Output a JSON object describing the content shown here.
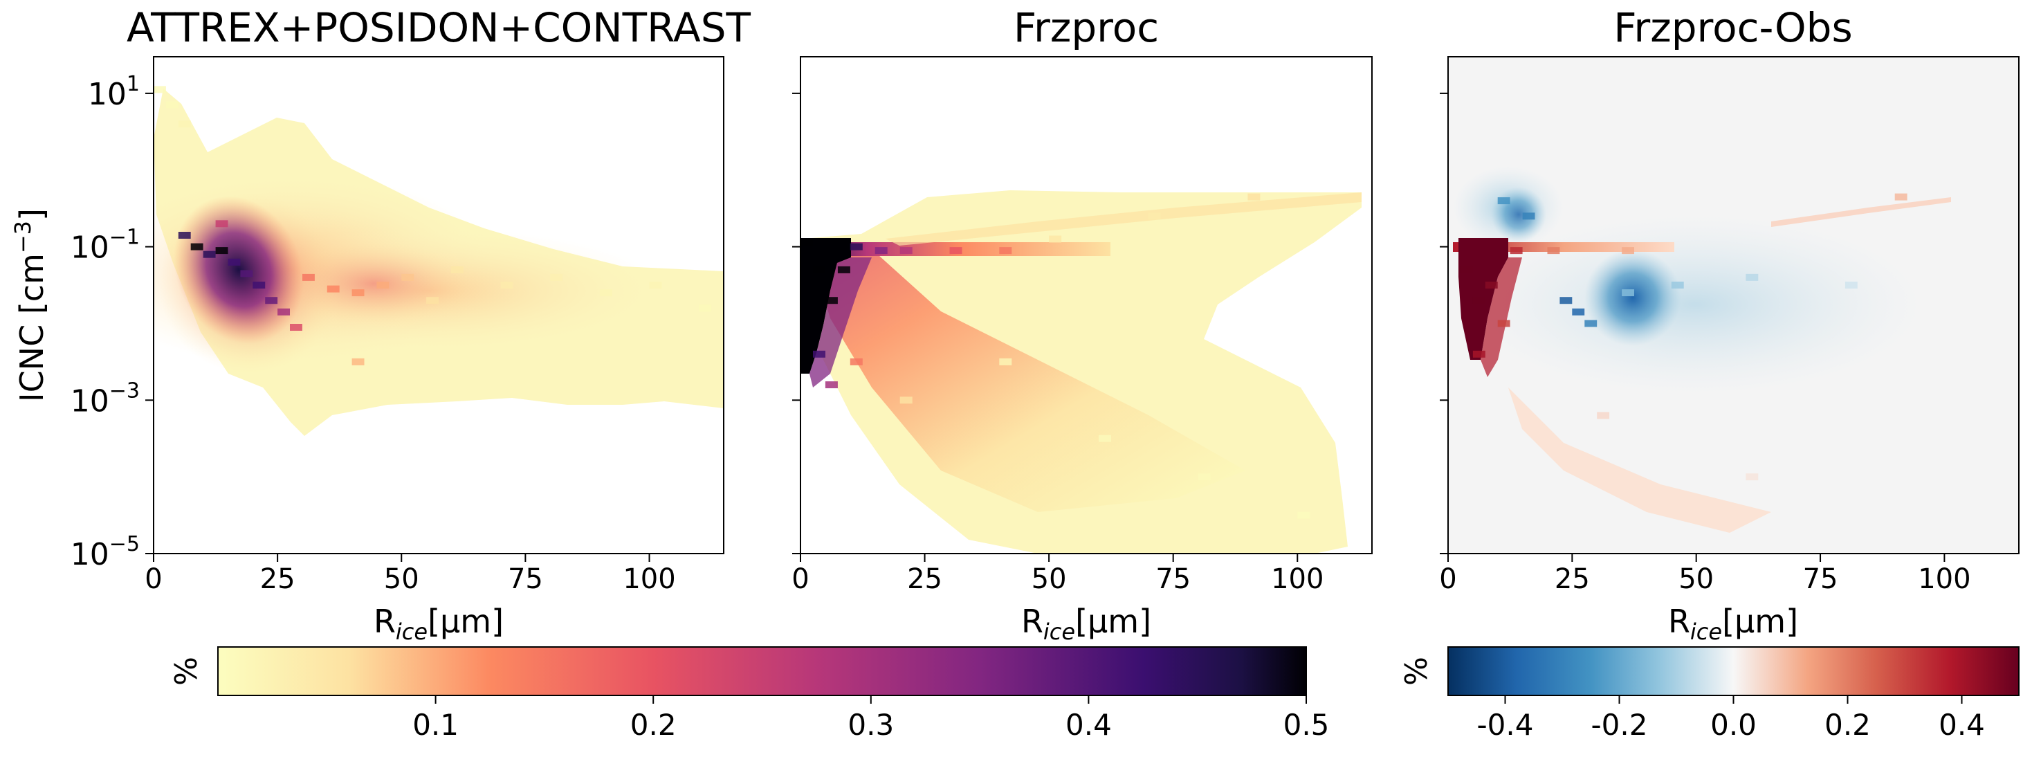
{
  "chart_data": [
    {
      "type": "heatmap",
      "title": "ATTREX+POSIDON+CONTRAST",
      "xlabel": "R",
      "xlabel_sub": "ice",
      "xlabel_unit": "[µm]",
      "ylabel": "ICNC [cm",
      "ylabel_sup": "−3",
      "ylabel_end": "]",
      "x_scale": "linear",
      "xlim": [
        0,
        115
      ],
      "x_ticks": [
        0,
        25,
        50,
        75,
        100
      ],
      "y_scale": "log",
      "ylim": [
        1e-05,
        30
      ],
      "y_ticks": [
        {
          "value": 10,
          "label": "10",
          "exp": "1"
        },
        {
          "value": 0.1,
          "label": "10",
          "exp": "−1"
        },
        {
          "value": 0.001,
          "label": "10",
          "exp": "−3"
        },
        {
          "value": 1e-05,
          "label": "10",
          "exp": "−5"
        }
      ],
      "colormap": "magma_r",
      "cells": [
        {
          "x": 0,
          "y_log": 1.05,
          "value": 0.01
        },
        {
          "x": 2.5,
          "y_log": 0.85,
          "value": 0.01
        },
        {
          "x": 5,
          "y_log": 0.6,
          "value": 0.02
        },
        {
          "x": 5,
          "y_log": -0.85,
          "value": 0.45
        },
        {
          "x": 7.5,
          "y_log": -1.0,
          "value": 0.5
        },
        {
          "x": 10,
          "y_log": -1.1,
          "value": 0.45
        },
        {
          "x": 12.5,
          "y_log": -0.7,
          "value": 0.25
        },
        {
          "x": 12.5,
          "y_log": -1.05,
          "value": 0.5
        },
        {
          "x": 15,
          "y_log": -1.2,
          "value": 0.42
        },
        {
          "x": 17.5,
          "y_log": -1.35,
          "value": 0.4
        },
        {
          "x": 20,
          "y_log": -1.5,
          "value": 0.42
        },
        {
          "x": 22.5,
          "y_log": -1.7,
          "value": 0.38
        },
        {
          "x": 25,
          "y_log": -1.85,
          "value": 0.3
        },
        {
          "x": 27.5,
          "y_log": -2.05,
          "value": 0.22
        },
        {
          "x": 30,
          "y_log": -1.4,
          "value": 0.15
        },
        {
          "x": 35,
          "y_log": -1.55,
          "value": 0.13
        },
        {
          "x": 40,
          "y_log": -1.6,
          "value": 0.12
        },
        {
          "x": 40,
          "y_log": -2.5,
          "value": 0.09
        },
        {
          "x": 45,
          "y_log": -1.5,
          "value": 0.1
        },
        {
          "x": 50,
          "y_log": -1.4,
          "value": 0.08
        },
        {
          "x": 55,
          "y_log": -1.7,
          "value": 0.06
        },
        {
          "x": 60,
          "y_log": -1.3,
          "value": 0.05
        },
        {
          "x": 70,
          "y_log": -1.5,
          "value": 0.04
        },
        {
          "x": 80,
          "y_log": -1.4,
          "value": 0.03
        },
        {
          "x": 90,
          "y_log": -1.6,
          "value": 0.02
        },
        {
          "x": 100,
          "y_log": -1.5,
          "value": 0.02
        },
        {
          "x": 110,
          "y_log": -1.8,
          "value": 0.01
        }
      ]
    },
    {
      "type": "heatmap",
      "title": "Frzproc",
      "xlabel": "R",
      "xlabel_sub": "ice",
      "xlabel_unit": "[µm]",
      "x_scale": "linear",
      "xlim": [
        0,
        115
      ],
      "x_ticks": [
        0,
        25,
        50,
        75,
        100
      ],
      "y_scale": "log",
      "ylim": [
        1e-05,
        30
      ],
      "colormap": "magma_r",
      "cells": [
        {
          "x": 0,
          "y_log": -0.95,
          "value": 0.5
        },
        {
          "x": 2.5,
          "y_log": -1.3,
          "value": 0.5
        },
        {
          "x": 5,
          "y_log": -1.7,
          "value": 0.5
        },
        {
          "x": 7.5,
          "y_log": -1.3,
          "value": 0.5
        },
        {
          "x": 2.5,
          "y_log": -2.4,
          "value": 0.42
        },
        {
          "x": 5,
          "y_log": -2.8,
          "value": 0.3
        },
        {
          "x": 10,
          "y_log": -1.0,
          "value": 0.45
        },
        {
          "x": 15,
          "y_log": -1.05,
          "value": 0.35
        },
        {
          "x": 20,
          "y_log": -1.05,
          "value": 0.28
        },
        {
          "x": 30,
          "y_log": -1.05,
          "value": 0.2
        },
        {
          "x": 40,
          "y_log": -1.05,
          "value": 0.15
        },
        {
          "x": 50,
          "y_log": -0.9,
          "value": 0.05
        },
        {
          "x": 70,
          "y_log": -0.6,
          "value": 0.04
        },
        {
          "x": 90,
          "y_log": -0.35,
          "value": 0.06
        },
        {
          "x": 10,
          "y_log": -2.5,
          "value": 0.15
        },
        {
          "x": 20,
          "y_log": -3.0,
          "value": 0.06
        },
        {
          "x": 40,
          "y_log": -2.5,
          "value": 0.02
        },
        {
          "x": 60,
          "y_log": -3.5,
          "value": 0.01
        },
        {
          "x": 80,
          "y_log": -4.0,
          "value": 0.01
        },
        {
          "x": 100,
          "y_log": -4.5,
          "value": 0.005
        }
      ]
    },
    {
      "type": "heatmap",
      "title": "Frzproc-Obs",
      "xlabel": "R",
      "xlabel_sub": "ice",
      "xlabel_unit": "[µm]",
      "x_scale": "linear",
      "xlim": [
        0,
        115
      ],
      "x_ticks": [
        0,
        25,
        50,
        75,
        100
      ],
      "y_scale": "log",
      "ylim": [
        1e-05,
        30
      ],
      "colormap": "RdBu_r",
      "cells": [
        {
          "x": 2.5,
          "y_log": -1.3,
          "value": 0.5
        },
        {
          "x": 5,
          "y_log": -1.7,
          "value": 0.5
        },
        {
          "x": 7.5,
          "y_log": -1.5,
          "value": 0.45
        },
        {
          "x": 5,
          "y_log": -2.4,
          "value": 0.4
        },
        {
          "x": 10,
          "y_log": -2.0,
          "value": 0.3
        },
        {
          "x": 12.5,
          "y_log": -1.05,
          "value": 0.35
        },
        {
          "x": 20,
          "y_log": -1.05,
          "value": 0.2
        },
        {
          "x": 35,
          "y_log": -1.05,
          "value": 0.12
        },
        {
          "x": 15,
          "y_log": -0.6,
          "value": -0.3
        },
        {
          "x": 10,
          "y_log": -0.4,
          "value": -0.25
        },
        {
          "x": 22.5,
          "y_log": -1.7,
          "value": -0.4
        },
        {
          "x": 25,
          "y_log": -1.85,
          "value": -0.38
        },
        {
          "x": 27.5,
          "y_log": -2.0,
          "value": -0.3
        },
        {
          "x": 35,
          "y_log": -1.6,
          "value": -0.15
        },
        {
          "x": 45,
          "y_log": -1.5,
          "value": -0.12
        },
        {
          "x": 60,
          "y_log": -1.4,
          "value": -0.08
        },
        {
          "x": 80,
          "y_log": -1.5,
          "value": -0.05
        },
        {
          "x": 90,
          "y_log": -0.35,
          "value": 0.1
        },
        {
          "x": 30,
          "y_log": -3.2,
          "value": 0.05
        },
        {
          "x": 60,
          "y_log": -4.0,
          "value": 0.03
        }
      ]
    }
  ],
  "colorbars": [
    {
      "label": "%",
      "colormap": "magma_r",
      "range": [
        0,
        0.5
      ],
      "ticks": [
        "0.1",
        "0.2",
        "0.3",
        "0.4",
        "0.5"
      ],
      "tick_values": [
        0.1,
        0.2,
        0.3,
        0.4,
        0.5
      ]
    },
    {
      "label": "%",
      "colormap": "RdBu_r",
      "range": [
        -0.5,
        0.5
      ],
      "ticks": [
        "-0.4",
        "-0.2",
        "0.0",
        "0.2",
        "0.4"
      ],
      "tick_values": [
        -0.4,
        -0.2,
        0,
        0.2,
        0.4
      ]
    }
  ]
}
